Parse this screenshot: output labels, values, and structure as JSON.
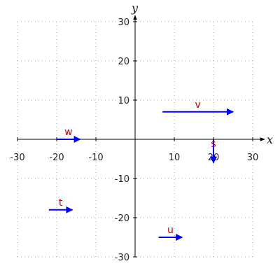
{
  "chart_data": {
    "type": "vector-field",
    "xlabel": "x",
    "ylabel": "y",
    "xlim": [
      -30,
      30
    ],
    "ylim": [
      -30,
      30
    ],
    "xticks": [
      -30,
      -20,
      -10,
      10,
      20,
      30
    ],
    "yticks": [
      -30,
      -20,
      -10,
      10,
      20,
      30
    ],
    "grid": true,
    "vector_color": "#0000ff",
    "label_color": "#cc0000",
    "vectors": [
      {
        "name": "v",
        "x0": 7,
        "y0": 7,
        "x1": 25,
        "y1": 7
      },
      {
        "name": "w",
        "x0": -20,
        "y0": 0,
        "x1": -14,
        "y1": 0
      },
      {
        "name": "s",
        "x0": 20,
        "y0": 0,
        "x1": 20,
        "y1": -6
      },
      {
        "name": "t",
        "x0": -22,
        "y0": -18,
        "x1": -16,
        "y1": -18
      },
      {
        "name": "u",
        "x0": 6,
        "y0": -25,
        "x1": 12,
        "y1": -25
      }
    ]
  }
}
